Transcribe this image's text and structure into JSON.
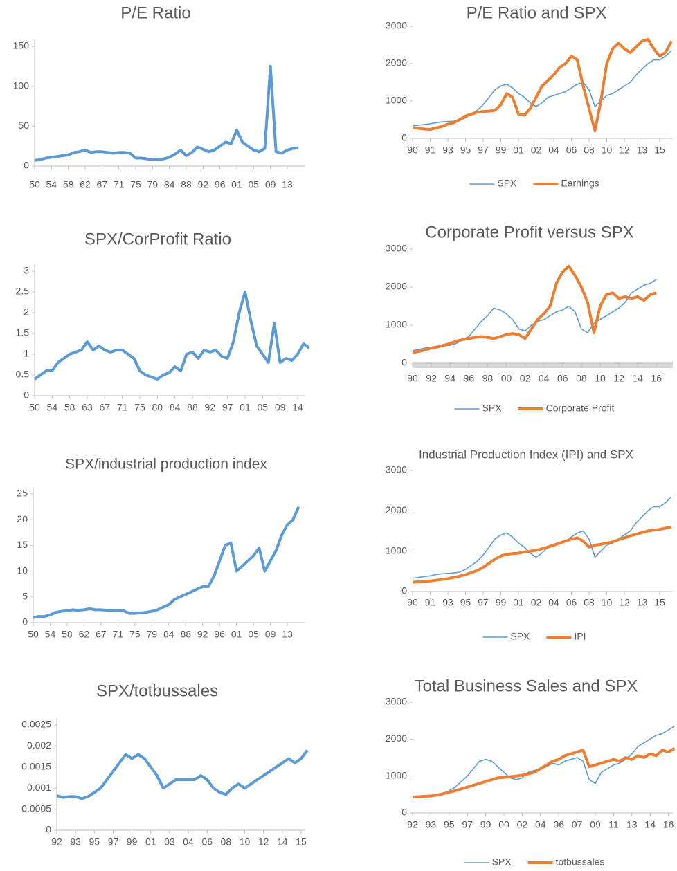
{
  "chart_data": [
    {
      "type": "line",
      "title": "P/E Ratio",
      "color": "#5b9bd5",
      "categories": [
        "50",
        null,
        null,
        "54",
        null,
        null,
        "58",
        null,
        null,
        "62",
        null,
        null,
        "67",
        null,
        null,
        "71",
        null,
        null,
        "75",
        null,
        null,
        "79",
        null,
        null,
        "84",
        null,
        null,
        "88",
        null,
        null,
        "92",
        null,
        null,
        "96",
        null,
        null,
        "01",
        null,
        null,
        "05",
        null,
        null,
        "09",
        null,
        null,
        "13",
        null,
        null
      ],
      "values": [
        7,
        8,
        10,
        11,
        12,
        13,
        14,
        17,
        18,
        20,
        17,
        18,
        18,
        17,
        16,
        17,
        17,
        16,
        10,
        10,
        9,
        8,
        8,
        9,
        11,
        15,
        20,
        13,
        17,
        24,
        21,
        18,
        20,
        25,
        30,
        28,
        45,
        30,
        25,
        20,
        18,
        22,
        125,
        18,
        16,
        20,
        22,
        23
      ],
      "ylim": [
        0,
        150
      ],
      "yticks": [
        0,
        50,
        100,
        150
      ]
    },
    {
      "type": "line",
      "title": "SPX/CorProfit Ratio",
      "color": "#5b9bd5",
      "categories": [
        "50",
        null,
        null,
        "54",
        null,
        null,
        "58",
        null,
        null,
        "63",
        null,
        null,
        "67",
        null,
        null,
        "71",
        null,
        null,
        "75",
        null,
        null,
        "80",
        null,
        null,
        "84",
        null,
        null,
        "88",
        null,
        null,
        "92",
        null,
        null,
        "97",
        null,
        null,
        "01",
        null,
        null,
        "05",
        null,
        null,
        "09",
        null,
        null,
        "14",
        null,
        null
      ],
      "values": [
        0.4,
        0.5,
        0.6,
        0.6,
        0.8,
        0.9,
        1.0,
        1.05,
        1.1,
        1.3,
        1.1,
        1.2,
        1.1,
        1.05,
        1.1,
        1.1,
        1.0,
        0.9,
        0.6,
        0.5,
        0.45,
        0.4,
        0.5,
        0.55,
        0.7,
        0.6,
        1.0,
        1.05,
        0.9,
        1.1,
        1.05,
        1.1,
        0.95,
        0.9,
        1.3,
        2.0,
        2.5,
        1.8,
        1.2,
        1.0,
        0.8,
        1.75,
        0.8,
        0.9,
        0.85,
        1.0,
        1.25,
        1.15
      ],
      "ylim": [
        0,
        3
      ],
      "yticks": [
        0,
        0.5,
        1,
        1.5,
        2,
        2.5,
        3
      ]
    },
    {
      "type": "line",
      "title": "SPX/industrial production index",
      "color": "#5b9bd5",
      "categories": [
        "50",
        null,
        null,
        "54",
        null,
        null,
        "58",
        null,
        null,
        "62",
        null,
        null,
        "67",
        null,
        null,
        "71",
        null,
        null,
        "75",
        null,
        null,
        "79",
        null,
        null,
        "84",
        null,
        null,
        "88",
        null,
        null,
        "92",
        null,
        null,
        "96",
        null,
        null,
        "01",
        null,
        null,
        "05",
        null,
        null,
        "09",
        null,
        null,
        "13",
        null,
        null
      ],
      "values": [
        1,
        1.2,
        1.2,
        1.5,
        2,
        2.2,
        2.3,
        2.5,
        2.4,
        2.5,
        2.7,
        2.5,
        2.5,
        2.4,
        2.3,
        2.4,
        2.3,
        1.8,
        1.8,
        1.9,
        2.0,
        2.2,
        2.5,
        3,
        3.5,
        4.5,
        5,
        5.5,
        6,
        6.5,
        7,
        7,
        9,
        12,
        15,
        15.5,
        10,
        11,
        12,
        13,
        14.5,
        10,
        12,
        14,
        17,
        19,
        20,
        22.5
      ],
      "ylim": [
        0,
        25
      ],
      "yticks": [
        0,
        5,
        10,
        15,
        20,
        25
      ]
    },
    {
      "type": "line",
      "title": "SPX/totbussales",
      "color": "#5b9bd5",
      "categories": [
        "92",
        null,
        null,
        "93",
        null,
        null,
        "95",
        null,
        null,
        "97",
        null,
        null,
        "99",
        null,
        null,
        "01",
        null,
        null,
        "03",
        null,
        null,
        "04",
        null,
        null,
        "06",
        null,
        null,
        "08",
        null,
        null,
        "10",
        null,
        null,
        "12",
        null,
        null,
        "14",
        null,
        null,
        "15",
        null
      ],
      "values": [
        0.00082,
        0.00078,
        0.0008,
        0.0008,
        0.00075,
        0.0008,
        0.0009,
        0.001,
        0.0012,
        0.0014,
        0.0016,
        0.0018,
        0.0017,
        0.0018,
        0.0017,
        0.0015,
        0.0013,
        0.001,
        0.0011,
        0.0012,
        0.0012,
        0.0012,
        0.0012,
        0.0013,
        0.0012,
        0.001,
        0.0009,
        0.00085,
        0.001,
        0.0011,
        0.001,
        0.0011,
        0.0012,
        0.0013,
        0.0014,
        0.0015,
        0.0016,
        0.0017,
        0.0016,
        0.0017,
        0.0019
      ],
      "ylim": [
        0,
        0.0025
      ],
      "yticks": [
        0,
        0.0005,
        0.001,
        0.0015,
        0.002,
        0.0025
      ]
    },
    {
      "type": "line",
      "title": "P/E Ratio and SPX",
      "categories": [
        "90",
        null,
        null,
        "91",
        null,
        null,
        "93",
        null,
        null,
        "95",
        null,
        null,
        "97",
        null,
        null,
        "99",
        null,
        null,
        "01",
        null,
        null,
        "02",
        null,
        null,
        "04",
        null,
        null,
        "06",
        null,
        null,
        "08",
        null,
        null,
        "10",
        null,
        null,
        "12",
        null,
        null,
        "13",
        null,
        null,
        "15",
        null,
        null
      ],
      "series": [
        {
          "name": "SPX",
          "color": "#5b9bd5",
          "values": [
            330,
            350,
            370,
            390,
            420,
            440,
            450,
            460,
            480,
            550,
            650,
            750,
            900,
            1100,
            1300,
            1400,
            1450,
            1350,
            1200,
            1100,
            950,
            850,
            950,
            1100,
            1150,
            1200,
            1250,
            1350,
            1450,
            1500,
            1300,
            850,
            1000,
            1150,
            1200,
            1300,
            1400,
            1500,
            1700,
            1850,
            2000,
            2100,
            2100,
            2200,
            2350
          ]
        },
        {
          "name": "Earnings",
          "color": "#ed7d31",
          "values": [
            280,
            270,
            250,
            240,
            280,
            320,
            380,
            420,
            500,
            600,
            650,
            700,
            720,
            730,
            750,
            900,
            1200,
            1100,
            650,
            620,
            800,
            1100,
            1400,
            1550,
            1700,
            1900,
            2000,
            2200,
            2100,
            1400,
            800,
            200,
            1000,
            2000,
            2400,
            2550,
            2400,
            2300,
            2450,
            2600,
            2650,
            2400,
            2200,
            2300,
            2600
          ]
        }
      ],
      "ylim": [
        0,
        3000
      ],
      "yticks": [
        0,
        1000,
        2000,
        3000
      ]
    },
    {
      "type": "line",
      "title": "Corporate Profit versus SPX",
      "categories": [
        "90",
        null,
        null,
        "92",
        null,
        null,
        "94",
        null,
        null,
        "96",
        null,
        null,
        "98",
        null,
        null,
        "00",
        null,
        null,
        "02",
        null,
        null,
        "04",
        null,
        null,
        "06",
        null,
        null,
        "08",
        null,
        null,
        "10",
        null,
        null,
        "12",
        null,
        null,
        "14",
        null,
        null,
        "16"
      ],
      "series": [
        {
          "name": "SPX",
          "color": "#5b9bd5",
          "values": [
            330,
            360,
            400,
            420,
            440,
            460,
            470,
            520,
            620,
            700,
            900,
            1100,
            1250,
            1450,
            1400,
            1300,
            1150,
            900,
            850,
            1000,
            1100,
            1150,
            1250,
            1350,
            1400,
            1500,
            1350,
            900,
            800,
            1050,
            1150,
            1250,
            1350,
            1450,
            1600,
            1850,
            1950,
            2050,
            2100,
            2200
          ]
        },
        {
          "name": "Corporate Profit",
          "color": "#ed7d31",
          "values": [
            280,
            310,
            350,
            400,
            430,
            470,
            520,
            580,
            620,
            650,
            680,
            700,
            680,
            650,
            700,
            750,
            780,
            750,
            650,
            900,
            1150,
            1300,
            1500,
            2100,
            2400,
            2550,
            2300,
            2000,
            1600,
            800,
            1500,
            1800,
            1850,
            1700,
            1750,
            1700,
            1750,
            1650,
            1800,
            1850
          ]
        }
      ],
      "ylim": [
        0,
        3000
      ],
      "yticks": [
        0,
        1000,
        2000,
        3000
      ]
    },
    {
      "type": "line",
      "title": "Industrial Production Index (IPI) and SPX",
      "categories": [
        "90",
        null,
        null,
        "91",
        null,
        null,
        "93",
        null,
        null,
        "95",
        null,
        null,
        "97",
        null,
        null,
        "99",
        null,
        null,
        "01",
        null,
        null,
        "02",
        null,
        null,
        "04",
        null,
        null,
        "06",
        null,
        null,
        "08",
        null,
        null,
        "10",
        null,
        null,
        "12",
        null,
        null,
        "13",
        null,
        null,
        "15",
        null,
        null
      ],
      "series": [
        {
          "name": "SPX",
          "color": "#5b9bd5",
          "values": [
            330,
            350,
            370,
            390,
            420,
            440,
            450,
            460,
            480,
            550,
            650,
            750,
            900,
            1100,
            1300,
            1400,
            1450,
            1350,
            1200,
            1100,
            950,
            850,
            950,
            1100,
            1150,
            1200,
            1250,
            1350,
            1450,
            1500,
            1300,
            850,
            1000,
            1150,
            1200,
            1300,
            1400,
            1500,
            1700,
            1850,
            2000,
            2100,
            2100,
            2200,
            2350
          ]
        },
        {
          "name": "IPI",
          "color": "#ed7d31",
          "values": [
            230,
            240,
            250,
            260,
            280,
            300,
            320,
            350,
            380,
            420,
            470,
            520,
            600,
            700,
            800,
            880,
            920,
            940,
            950,
            980,
            1000,
            1020,
            1060,
            1100,
            1150,
            1200,
            1250,
            1300,
            1330,
            1250,
            1100,
            1150,
            1170,
            1200,
            1230,
            1280,
            1330,
            1380,
            1420,
            1460,
            1500,
            1520,
            1540,
            1570,
            1600
          ]
        }
      ],
      "ylim": [
        0,
        3000
      ],
      "yticks": [
        0,
        1000,
        2000,
        3000
      ]
    },
    {
      "type": "line",
      "title": "Total Business Sales and SPX",
      "categories": [
        "92",
        null,
        null,
        "93",
        null,
        null,
        "95",
        null,
        null,
        "97",
        null,
        null,
        "99",
        null,
        null,
        "00",
        null,
        null,
        "02",
        null,
        null,
        "04",
        null,
        null,
        "06",
        null,
        null,
        "07",
        null,
        null,
        "09",
        null,
        null,
        "11",
        null,
        null,
        "13",
        null,
        null,
        "14",
        null,
        null,
        "16",
        null
      ],
      "series": [
        {
          "name": "SPX",
          "color": "#5b9bd5",
          "values": [
            420,
            430,
            450,
            460,
            480,
            520,
            600,
            700,
            850,
            1000,
            1200,
            1400,
            1450,
            1400,
            1250,
            1100,
            950,
            900,
            950,
            1100,
            1150,
            1200,
            1250,
            1350,
            1300,
            1400,
            1450,
            1500,
            1400,
            900,
            800,
            1100,
            1200,
            1300,
            1350,
            1450,
            1600,
            1800,
            1900,
            2000,
            2100,
            2150,
            2250,
            2350
          ]
        },
        {
          "name": "totbussales",
          "color": "#ed7d31",
          "values": [
            430,
            440,
            450,
            460,
            480,
            520,
            560,
            600,
            650,
            700,
            750,
            800,
            850,
            900,
            950,
            960,
            980,
            1000,
            1020,
            1060,
            1100,
            1200,
            1300,
            1400,
            1450,
            1550,
            1600,
            1650,
            1700,
            1250,
            1300,
            1350,
            1400,
            1450,
            1400,
            1500,
            1450,
            1550,
            1500,
            1600,
            1550,
            1700,
            1650,
            1750
          ]
        }
      ],
      "ylim": [
        0,
        3000
      ],
      "yticks": [
        0,
        1000,
        2000,
        3000
      ]
    }
  ]
}
